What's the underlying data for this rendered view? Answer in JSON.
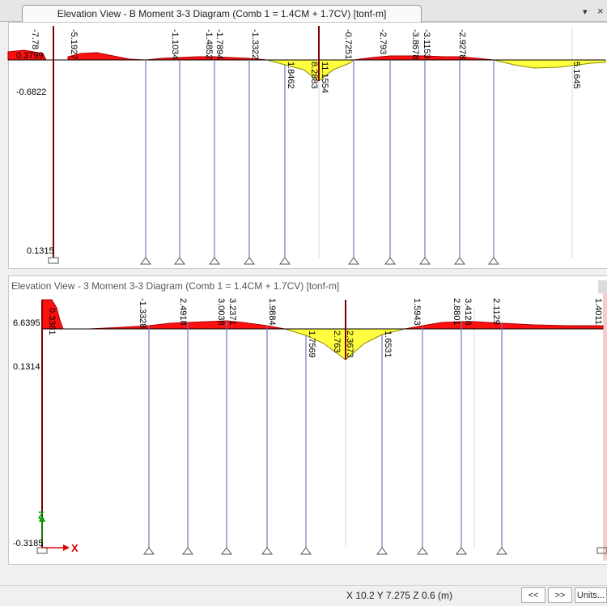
{
  "tab": {
    "title": "Elevation View - B   Moment 3-3 Diagram   (Comb 1 = 1.4CM + 1.7CV)  [tonf-m]",
    "menu_glyph": "▾",
    "close_glyph": "×"
  },
  "pane2": {
    "title": "Elevation View - 3   Moment 3-3 Diagram   (Comb 1 = 1.4CM + 1.7CV)  [tonf-m]"
  },
  "colors": {
    "negative_fill": "#ff1010",
    "positive_fill": "#ffff40",
    "column": "#6e78b8",
    "support": "#555555"
  },
  "diagram1": {
    "side_labels": [
      "0.3799",
      "-0.6822",
      "0.1315"
    ],
    "top_labels": [
      "-7.78",
      "-5.1927",
      "-1.1034",
      "-1.4852",
      "-1.7894",
      "-1.3322",
      "-0.7251",
      "-2.793",
      "-3.8678",
      "-3.1153",
      "-2.9278"
    ],
    "bottom_labels": [
      "1.8462",
      "8.2883",
      "11.1554",
      "5.1645"
    ]
  },
  "diagram2": {
    "side_labels": [
      "6.6395",
      "0.3381",
      "0.1314",
      "-0.3185"
    ],
    "top_labels": [
      "-1.3328",
      "2.4918",
      "3.0038",
      "3.2371",
      "1.9884",
      "1.5943",
      "2.8801",
      "3.4128",
      "2.1129",
      "1.4011"
    ],
    "bottom_labels": [
      "1.7569",
      "2.763",
      "2.3673",
      "1.6531"
    ],
    "axis_z": "Z",
    "axis_x": "X"
  },
  "status": {
    "coordinates": "X 10.2  Y 7.275  Z 0.6 (m)",
    "prev_label": "<<",
    "next_label": ">>",
    "units_label": "Units..."
  }
}
